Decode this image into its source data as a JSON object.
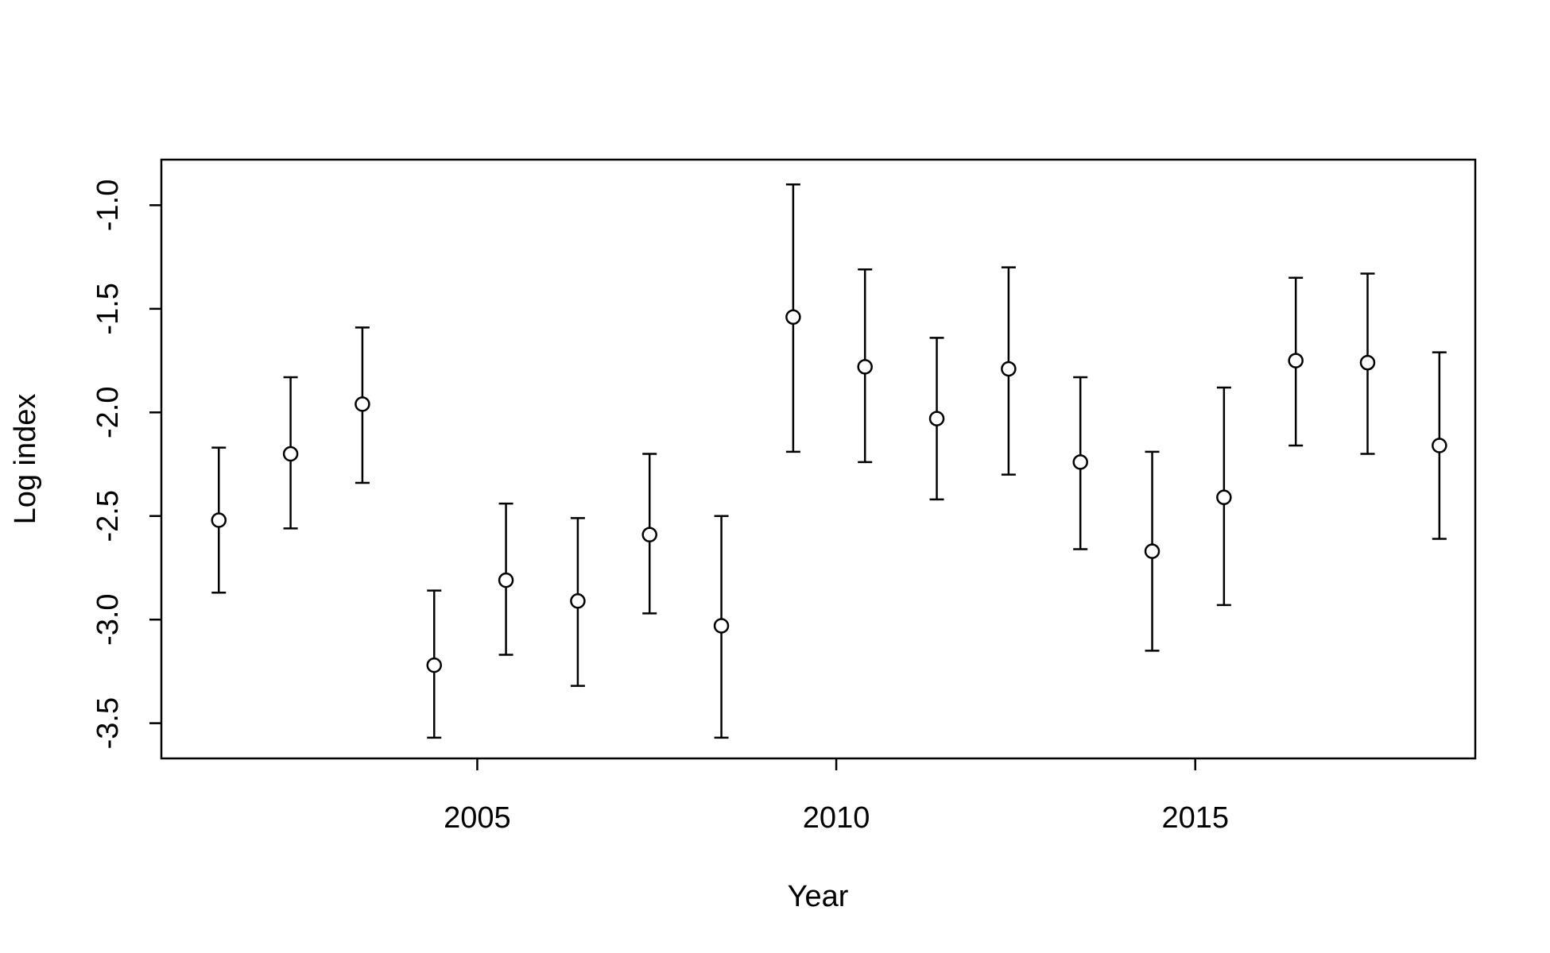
{
  "chart_data": {
    "type": "scatter",
    "title": "",
    "xlabel": "Year",
    "ylabel": "Log index",
    "xlim": [
      2000.6,
      2018.9
    ],
    "ylim": [
      -3.67,
      -0.78
    ],
    "x_ticks": [
      2005,
      2010,
      2015
    ],
    "y_ticks": [
      -3.5,
      -3.0,
      -2.5,
      -2.0,
      -1.5,
      -1.0
    ],
    "x_tick_labels": [
      "2005",
      "2010",
      "2015"
    ],
    "y_tick_labels": [
      "-3.5",
      "-3.0",
      "-2.5",
      "-2.0",
      "-1.5",
      "-1.0"
    ],
    "grid": false,
    "series": [
      {
        "x": [
          2001.4,
          2002.4,
          2003.4,
          2004.4,
          2005.4,
          2006.4,
          2007.4,
          2008.4,
          2009.4,
          2010.4,
          2011.4,
          2012.4,
          2013.4,
          2014.4,
          2015.4,
          2016.4,
          2017.4,
          2018.4
        ],
        "y": [
          -2.52,
          -2.2,
          -1.96,
          -3.22,
          -2.81,
          -2.91,
          -2.59,
          -3.03,
          -1.54,
          -1.78,
          -2.03,
          -1.79,
          -2.24,
          -2.67,
          -2.41,
          -1.75,
          -1.76,
          -2.16
        ],
        "lower": [
          -2.87,
          -2.56,
          -2.34,
          -3.57,
          -3.17,
          -3.32,
          -2.97,
          -3.57,
          -2.19,
          -2.24,
          -2.42,
          -2.3,
          -2.66,
          -3.15,
          -2.93,
          -2.16,
          -2.2,
          -2.61
        ],
        "upper": [
          -2.17,
          -1.83,
          -1.59,
          -2.86,
          -2.44,
          -2.51,
          -2.2,
          -2.5,
          -0.9,
          -1.31,
          -1.64,
          -1.3,
          -1.83,
          -2.19,
          -1.88,
          -1.35,
          -1.33,
          -1.71
        ]
      }
    ]
  }
}
